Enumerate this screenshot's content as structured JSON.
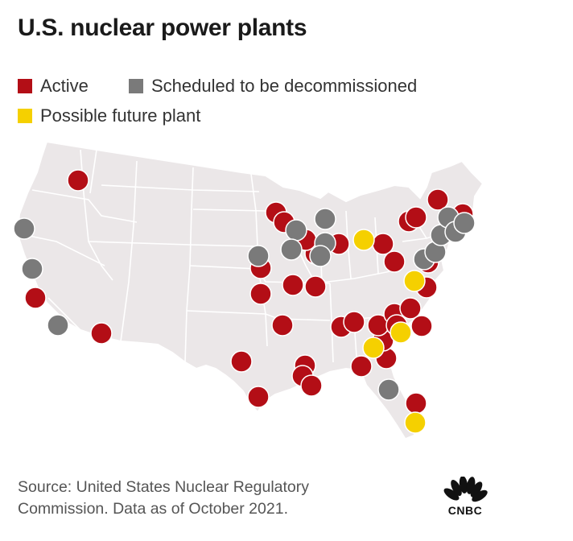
{
  "title": "U.S. nuclear power plants",
  "legend": [
    {
      "label": "Active",
      "color": "#b30e16"
    },
    {
      "label": "Scheduled to be decommissioned",
      "color": "#7a7a7a"
    },
    {
      "label": "Possible future plant",
      "color": "#f5d000"
    }
  ],
  "source": {
    "line1": "Source: United States Nuclear Regulatory",
    "line2": "Commission. Data as of October 2021."
  },
  "logo": {
    "text": "CNBC"
  },
  "colors": {
    "active": "#b30e16",
    "scheduled": "#7a7a7a",
    "future": "#f5d000",
    "land": "#ebe7e8",
    "border": "#ffffff"
  }
}
